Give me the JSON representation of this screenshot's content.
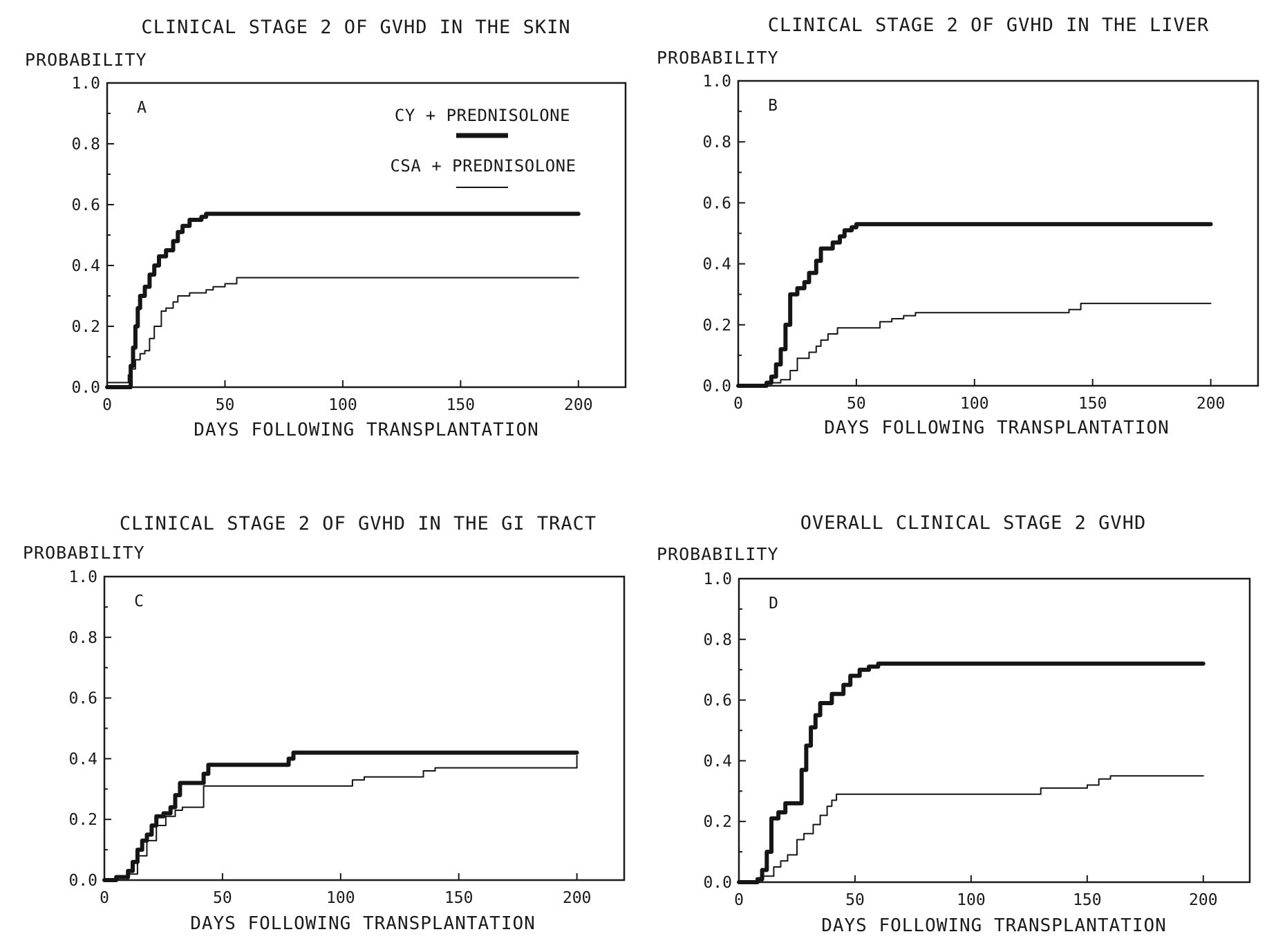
{
  "figure": {
    "legend": [
      {
        "label": "CY + PREDNISOLONE",
        "style": "thick"
      },
      {
        "label": "CSA + PREDNISOLONE",
        "style": "thin"
      }
    ]
  },
  "chart_data": [
    {
      "type": "line",
      "panel": "A",
      "title": "CLINICAL STAGE 2 OF GVHD IN THE SKIN",
      "ylabel": "PROBABILITY",
      "xlabel": "DAYS FOLLOWING TRANSPLANTATION",
      "xlim": [
        0,
        220
      ],
      "ylim": [
        0,
        1.0
      ],
      "xticks": [
        0,
        50,
        100,
        150,
        200
      ],
      "xtick_labels": [
        "0",
        "50",
        "100",
        "150",
        "200"
      ],
      "yticks": [
        0,
        0.2,
        0.4,
        0.6,
        0.8,
        1.0
      ],
      "ytick_labels": [
        "0.0",
        "0.2",
        "0.4",
        "0.6",
        "0.8",
        "1.0"
      ],
      "grid": false,
      "legend_position": "top-right",
      "series": [
        {
          "name": "CY + PREDNISOLONE",
          "style": "thick",
          "step": true,
          "x": [
            0,
            9,
            10,
            11,
            12,
            13,
            14,
            16,
            18,
            20,
            22,
            25,
            28,
            30,
            32,
            35,
            40,
            42,
            200
          ],
          "y": [
            0,
            0,
            0.07,
            0.13,
            0.2,
            0.26,
            0.3,
            0.33,
            0.37,
            0.4,
            0.43,
            0.45,
            0.48,
            0.51,
            0.53,
            0.55,
            0.56,
            0.57,
            0.57
          ]
        },
        {
          "name": "CSA + PREDNISOLONE",
          "style": "thin",
          "step": true,
          "x": [
            0,
            9,
            10,
            12,
            14,
            16,
            18,
            20,
            23,
            25,
            28,
            30,
            35,
            42,
            45,
            50,
            55,
            200
          ],
          "y": [
            0.015,
            0.04,
            0.06,
            0.09,
            0.11,
            0.12,
            0.16,
            0.2,
            0.25,
            0.26,
            0.28,
            0.3,
            0.31,
            0.32,
            0.33,
            0.34,
            0.36,
            0.36
          ]
        }
      ]
    },
    {
      "type": "line",
      "panel": "B",
      "title": "CLINICAL STAGE 2 OF GVHD IN THE LIVER",
      "ylabel": "PROBABILITY",
      "xlabel": "DAYS FOLLOWING TRANSPLANTATION",
      "xlim": [
        0,
        220
      ],
      "ylim": [
        0,
        1.0
      ],
      "xticks": [
        0,
        50,
        100,
        150,
        200
      ],
      "xtick_labels": [
        "0",
        "50",
        "100",
        "150",
        "200"
      ],
      "yticks": [
        0,
        0.2,
        0.4,
        0.6,
        0.8,
        1.0
      ],
      "ytick_labels": [
        "0.0",
        "0.2",
        "0.4",
        "0.6",
        "0.8",
        "1.0"
      ],
      "grid": false,
      "series": [
        {
          "name": "CY + PREDNISOLONE",
          "style": "thick",
          "step": true,
          "x": [
            0,
            10,
            12,
            14,
            16,
            18,
            20,
            22,
            25,
            28,
            30,
            33,
            35,
            40,
            43,
            45,
            48,
            50,
            52,
            200
          ],
          "y": [
            0,
            0,
            0.01,
            0.03,
            0.07,
            0.12,
            0.2,
            0.3,
            0.32,
            0.34,
            0.37,
            0.41,
            0.45,
            0.47,
            0.49,
            0.51,
            0.52,
            0.53,
            0.53,
            0.53
          ]
        },
        {
          "name": "CSA + PREDNISOLONE",
          "style": "thin",
          "step": true,
          "x": [
            0,
            12,
            18,
            22,
            25,
            30,
            33,
            35,
            38,
            42,
            50,
            55,
            60,
            65,
            70,
            75,
            100,
            140,
            145,
            200
          ],
          "y": [
            0,
            0.01,
            0.02,
            0.05,
            0.09,
            0.11,
            0.13,
            0.15,
            0.17,
            0.19,
            0.19,
            0.19,
            0.21,
            0.22,
            0.23,
            0.24,
            0.24,
            0.25,
            0.27,
            0.27
          ]
        }
      ]
    },
    {
      "type": "line",
      "panel": "C",
      "title": "CLINICAL STAGE 2 OF GVHD IN THE GI TRACT",
      "ylabel": "PROBABILITY",
      "xlabel": "DAYS FOLLOWING TRANSPLANTATION",
      "xlim": [
        0,
        220
      ],
      "ylim": [
        0,
        1.0
      ],
      "xticks": [
        0,
        50,
        100,
        150,
        200
      ],
      "xtick_labels": [
        "0",
        "50",
        "100",
        "150",
        "200"
      ],
      "yticks": [
        0,
        0.2,
        0.4,
        0.6,
        0.8,
        1.0
      ],
      "ytick_labels": [
        "0.0",
        "0.2",
        "0.4",
        "0.6",
        "0.8",
        "1.0"
      ],
      "grid": false,
      "series": [
        {
          "name": "CY + PREDNISOLONE",
          "style": "thick",
          "step": true,
          "x": [
            0,
            5,
            10,
            12,
            14,
            16,
            18,
            20,
            22,
            25,
            28,
            30,
            32,
            40,
            42,
            44,
            75,
            78,
            80,
            200
          ],
          "y": [
            0,
            0.01,
            0.03,
            0.06,
            0.1,
            0.13,
            0.15,
            0.18,
            0.21,
            0.22,
            0.24,
            0.28,
            0.32,
            0.32,
            0.35,
            0.38,
            0.38,
            0.4,
            0.42,
            0.42
          ]
        },
        {
          "name": "CSA + PREDNISOLONE",
          "style": "thin",
          "step": true,
          "x": [
            0,
            10,
            14,
            18,
            22,
            26,
            30,
            33,
            35,
            40,
            42,
            45,
            100,
            105,
            110,
            130,
            135,
            140,
            200
          ],
          "y": [
            0,
            0.02,
            0.08,
            0.13,
            0.18,
            0.21,
            0.23,
            0.24,
            0.24,
            0.24,
            0.31,
            0.31,
            0.31,
            0.33,
            0.34,
            0.34,
            0.36,
            0.37,
            0.41
          ]
        }
      ]
    },
    {
      "type": "line",
      "panel": "D",
      "title": "OVERALL CLINICAL STAGE 2 GVHD",
      "ylabel": "PROBABILITY",
      "xlabel": "DAYS FOLLOWING TRANSPLANTATION",
      "xlim": [
        0,
        220
      ],
      "ylim": [
        0,
        1.0
      ],
      "xticks": [
        0,
        50,
        100,
        150,
        200
      ],
      "xtick_labels": [
        "0",
        "50",
        "100",
        "150",
        "200"
      ],
      "yticks": [
        0,
        0.2,
        0.4,
        0.6,
        0.8,
        1.0
      ],
      "ytick_labels": [
        "0.0",
        "0.2",
        "0.4",
        "0.6",
        "0.8",
        "1.0"
      ],
      "grid": false,
      "series": [
        {
          "name": "CY + PREDNISOLONE",
          "style": "thick",
          "step": true,
          "x": [
            0,
            8,
            10,
            12,
            14,
            17,
            20,
            25,
            27,
            29,
            31,
            33,
            35,
            40,
            45,
            48,
            52,
            56,
            60,
            200
          ],
          "y": [
            0,
            0.01,
            0.04,
            0.1,
            0.21,
            0.23,
            0.26,
            0.26,
            0.37,
            0.45,
            0.51,
            0.55,
            0.59,
            0.62,
            0.65,
            0.68,
            0.7,
            0.71,
            0.72,
            0.72
          ]
        },
        {
          "name": "CSA + PREDNISOLONE",
          "style": "thin",
          "step": true,
          "x": [
            0,
            10,
            15,
            18,
            21,
            25,
            28,
            32,
            35,
            38,
            40,
            42,
            45,
            50,
            125,
            130,
            150,
            155,
            160,
            200
          ],
          "y": [
            0,
            0.02,
            0.05,
            0.07,
            0.09,
            0.14,
            0.16,
            0.19,
            0.22,
            0.25,
            0.27,
            0.29,
            0.29,
            0.29,
            0.29,
            0.31,
            0.32,
            0.34,
            0.35,
            0.35
          ]
        }
      ]
    }
  ]
}
